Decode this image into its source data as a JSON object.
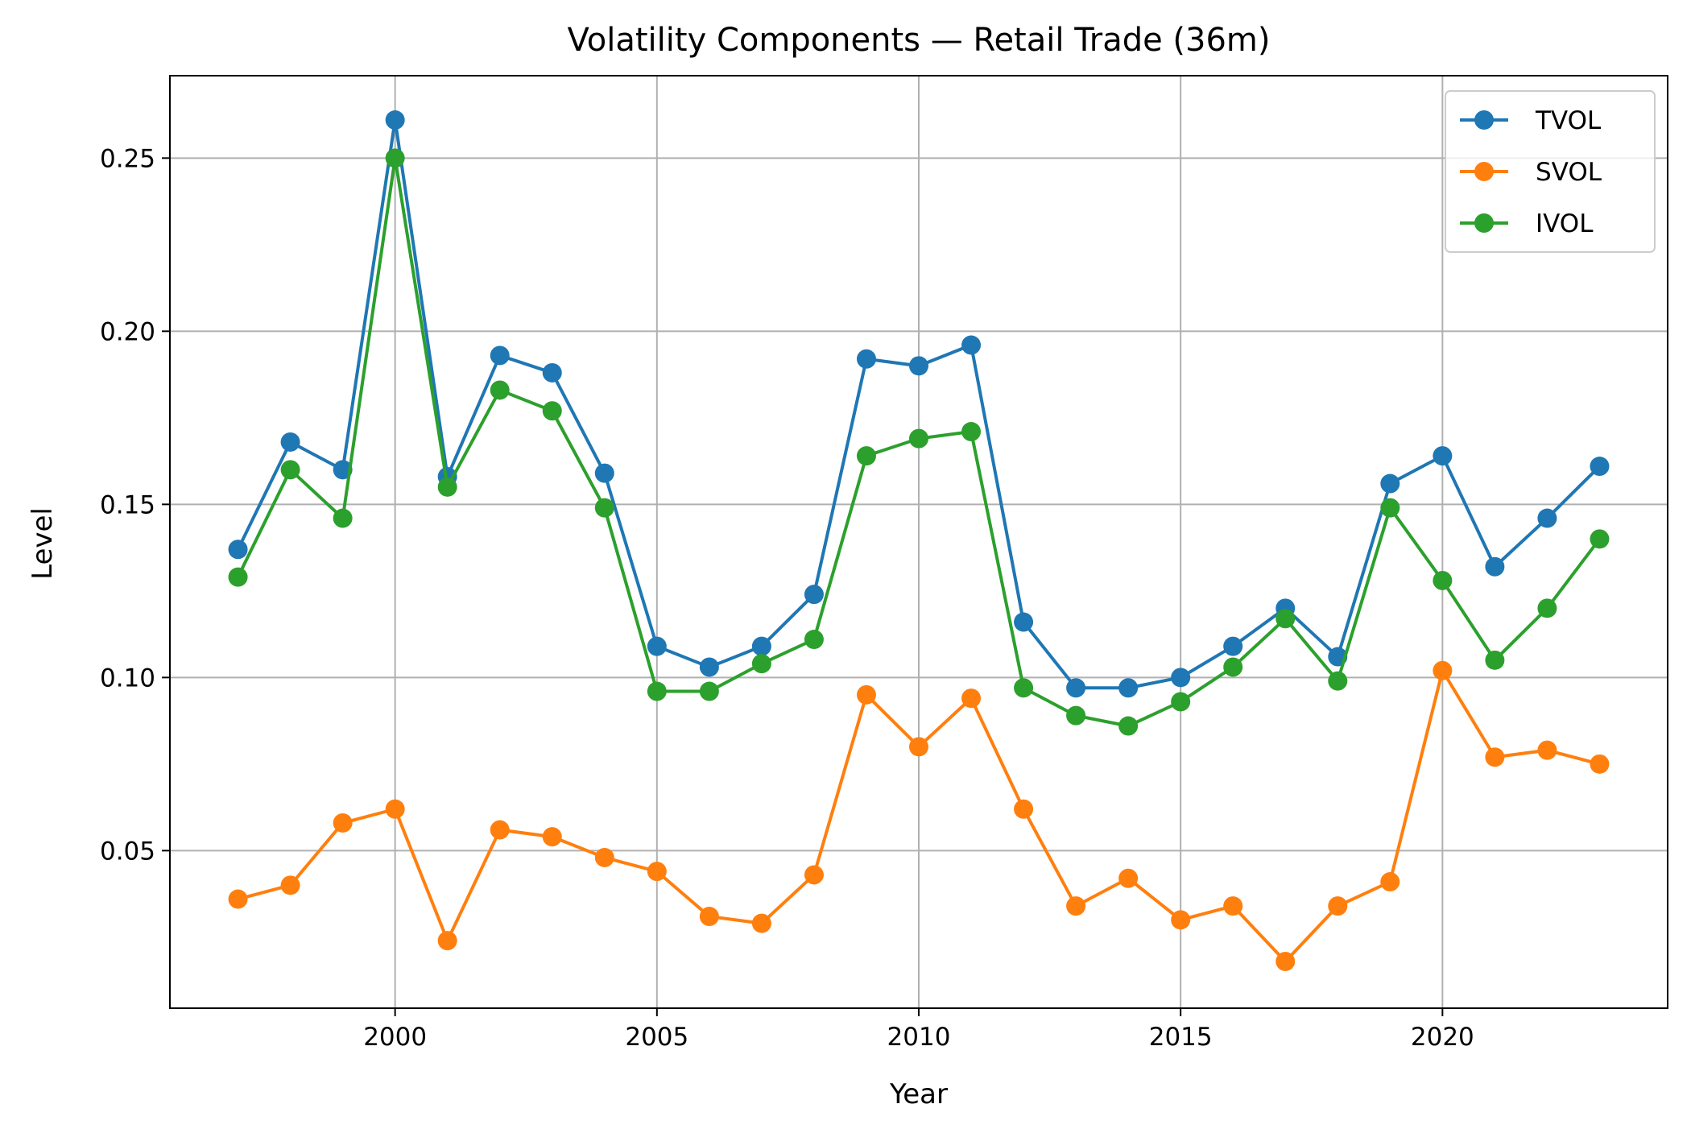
{
  "chart_data": {
    "type": "line",
    "title": "Volatility Components — Retail Trade (36m)",
    "xlabel": "Year",
    "ylabel": "Level",
    "x": [
      1997,
      1998,
      1999,
      2000,
      2001,
      2002,
      2003,
      2004,
      2005,
      2006,
      2007,
      2008,
      2009,
      2010,
      2011,
      2012,
      2013,
      2014,
      2015,
      2016,
      2017,
      2018,
      2019,
      2020,
      2021,
      2022,
      2023
    ],
    "xlim": [
      1995.7,
      2024.3
    ],
    "ylim": [
      0.0045,
      0.2738
    ],
    "xticks": [
      2000,
      2005,
      2010,
      2015,
      2020
    ],
    "xtick_labels": [
      "2000",
      "2005",
      "2010",
      "2015",
      "2020"
    ],
    "yticks": [
      0.05,
      0.1,
      0.15,
      0.2,
      0.25
    ],
    "ytick_labels": [
      "0.05",
      "0.10",
      "0.15",
      "0.20",
      "0.25"
    ],
    "grid": true,
    "legend_position": "upper right",
    "series": [
      {
        "name": "TVOL",
        "color": "#1f77b4",
        "marker": "circle",
        "values": [
          0.137,
          0.168,
          0.16,
          0.261,
          0.158,
          0.193,
          0.188,
          0.159,
          0.109,
          0.103,
          0.109,
          0.124,
          0.192,
          0.19,
          0.196,
          0.116,
          0.097,
          0.097,
          0.1,
          0.109,
          0.12,
          0.106,
          0.156,
          0.164,
          0.132,
          0.146,
          0.161
        ]
      },
      {
        "name": "SVOL",
        "color": "#ff7f0e",
        "marker": "circle",
        "values": [
          0.036,
          0.04,
          0.058,
          0.062,
          0.024,
          0.056,
          0.054,
          0.048,
          0.044,
          0.031,
          0.029,
          0.043,
          0.095,
          0.08,
          0.094,
          0.062,
          0.034,
          0.042,
          0.03,
          0.034,
          0.018,
          0.034,
          0.041,
          0.102,
          0.077,
          0.079,
          0.075
        ]
      },
      {
        "name": "IVOL",
        "color": "#2ca02c",
        "marker": "circle",
        "values": [
          0.129,
          0.16,
          0.146,
          0.25,
          0.155,
          0.183,
          0.177,
          0.149,
          0.096,
          0.096,
          0.104,
          0.111,
          0.164,
          0.169,
          0.171,
          0.097,
          0.089,
          0.086,
          0.093,
          0.103,
          0.117,
          0.099,
          0.149,
          0.128,
          0.105,
          0.12,
          0.14
        ]
      }
    ]
  }
}
